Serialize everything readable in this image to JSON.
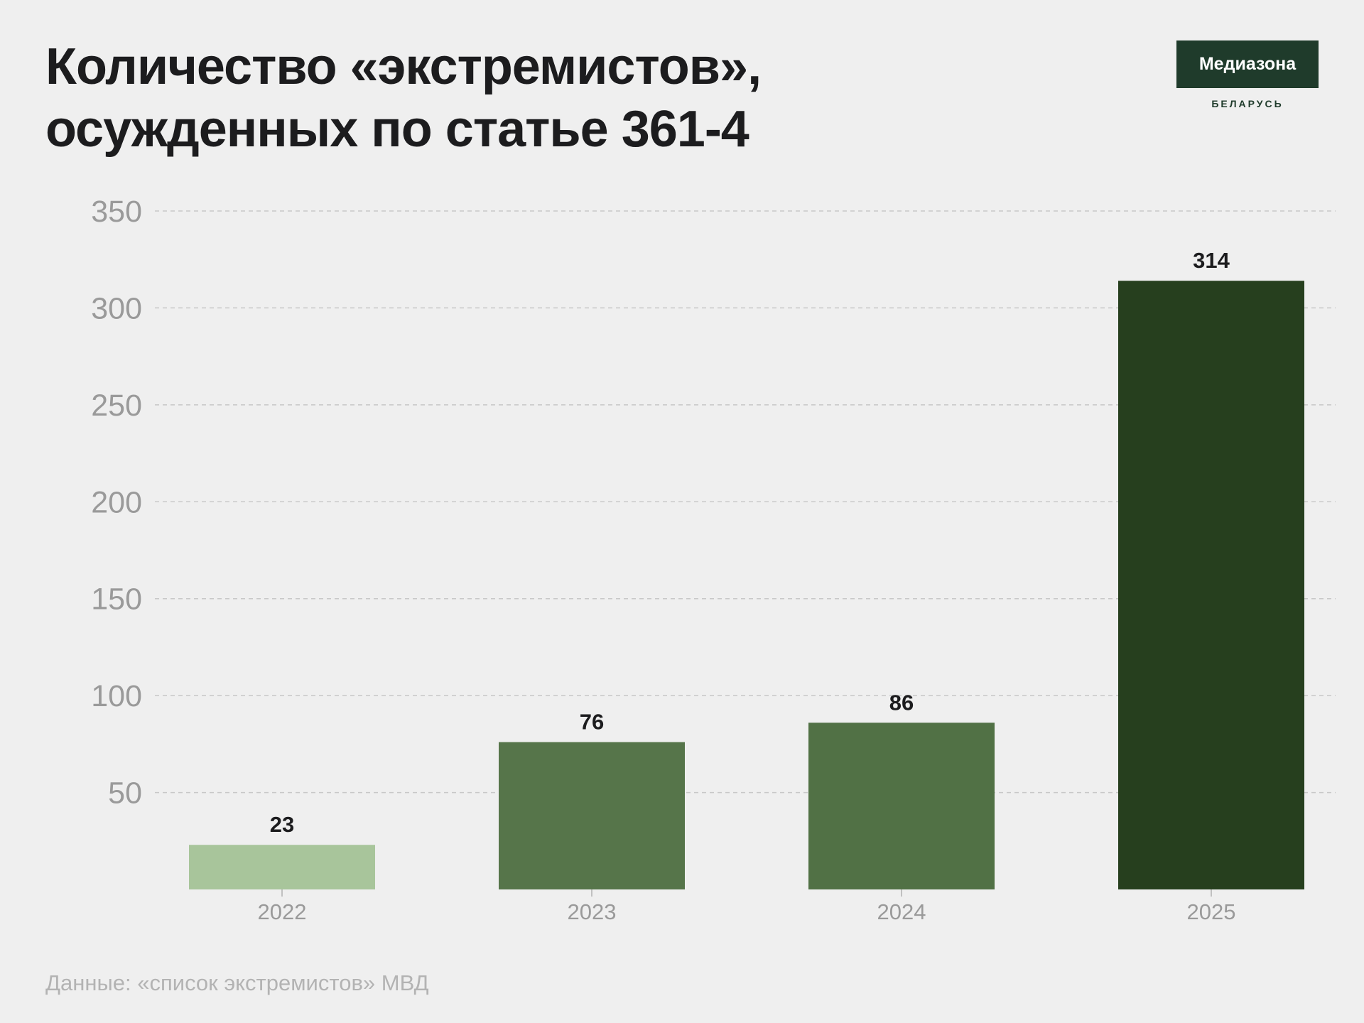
{
  "header": {
    "title_line1": "Количество «экстремистов»,",
    "title_line2": "осужденных по статье 361-4"
  },
  "logo": {
    "name": "Медиазона",
    "sub": "БЕЛАРУСЬ"
  },
  "source": "Данные: «список экстремистов» МВД",
  "colors": {
    "background": "#efefef",
    "text": "#1c1c1e",
    "axis_text": "#9a9a9a",
    "grid": "#c8c8c8",
    "logo_bg": "#1f3b2b"
  },
  "chart_data": {
    "type": "bar",
    "title": "Количество «экстремистов», осужденных по статье 361-4",
    "categories": [
      "2022",
      "2023",
      "2024",
      "2025"
    ],
    "values": [
      23,
      76,
      86,
      314
    ],
    "data_labels": [
      "23",
      "76",
      "86",
      "314"
    ],
    "bar_colors": [
      "#a8c59b",
      "#56754a",
      "#517145",
      "#263f1e"
    ],
    "ylim": [
      0,
      350
    ],
    "yticks": [
      50,
      100,
      150,
      200,
      250,
      300,
      350
    ],
    "ytick_labels": [
      "50",
      "100",
      "150",
      "200",
      "250",
      "300",
      "350"
    ],
    "grid": true,
    "grid_style": "dashed",
    "xlabel": "",
    "ylabel": ""
  }
}
